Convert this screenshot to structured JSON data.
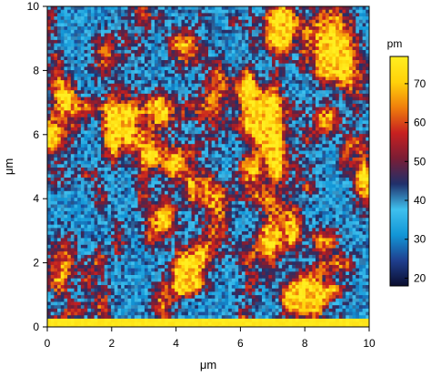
{
  "chart_data": {
    "type": "heatmap",
    "title": "",
    "xlabel": "μm",
    "ylabel": "μm",
    "xlim": [
      0,
      10
    ],
    "ylim": [
      0,
      10
    ],
    "x_ticks": [
      "0",
      "2",
      "4",
      "6",
      "8",
      "10"
    ],
    "y_ticks": [
      "0",
      "2",
      "4",
      "6",
      "8",
      "10"
    ],
    "colorbar": {
      "unit_label": "pm",
      "range": [
        18,
        77
      ],
      "ticks": [
        "70",
        "60",
        "50",
        "40",
        "30",
        "20"
      ],
      "tick_values": [
        70,
        60,
        50,
        40,
        30,
        20
      ],
      "colors": [
        "#0a0d2e",
        "#1f3f8f",
        "#1296d6",
        "#3fc0ee",
        "#20306b",
        "#7a1d35",
        "#c72020",
        "#f07e0c",
        "#ffd20a",
        "#ffee20"
      ]
    },
    "grid": false,
    "legend": "colorbar at right"
  }
}
